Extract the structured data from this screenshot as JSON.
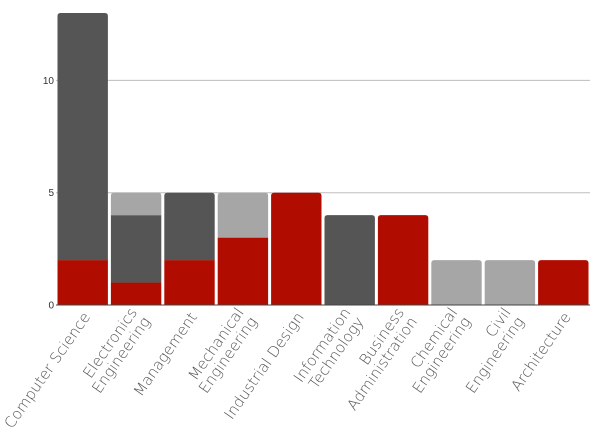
{
  "chart_data": {
    "type": "bar",
    "stacked": true,
    "categories": [
      [
        "Computer Science"
      ],
      [
        "Electronics",
        "Engineering"
      ],
      [
        "Management"
      ],
      [
        "Mechanical",
        "Engineering"
      ],
      [
        "Industrial Design"
      ],
      [
        "Information",
        "Technology"
      ],
      [
        "Business",
        "Administration"
      ],
      [
        "Chemical",
        "Engineering"
      ],
      [
        "Civil",
        "Engineering"
      ],
      [
        "Architecture"
      ]
    ],
    "series": [
      {
        "color": "#b00d00",
        "values": [
          2,
          1,
          2,
          3,
          5,
          0,
          4,
          0,
          0,
          2
        ]
      },
      {
        "color": "#555555",
        "values": [
          11,
          3,
          3,
          0,
          0,
          4,
          0,
          0,
          0,
          0
        ]
      },
      {
        "color": "#a6a6a6",
        "values": [
          0,
          1,
          0,
          2,
          0,
          0,
          0,
          2,
          2,
          0
        ]
      }
    ],
    "title": "",
    "xlabel": "",
    "ylabel": "",
    "ylim": [
      0,
      13
    ],
    "yticks": [
      0,
      5,
      10
    ],
    "grid": true,
    "legend": "none"
  }
}
